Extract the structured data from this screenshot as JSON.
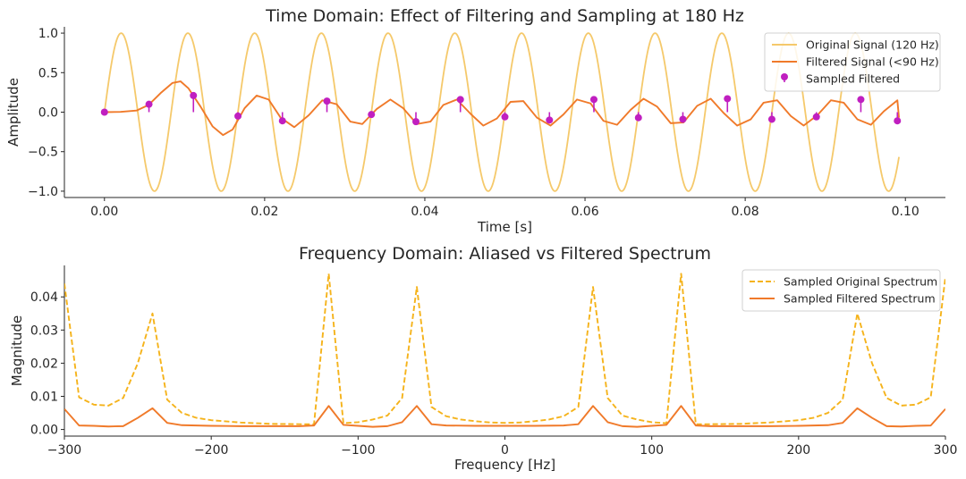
{
  "chart_data": [
    {
      "type": "line",
      "title": "Time Domain: Effect of Filtering and Sampling at 180 Hz",
      "xlabel": "Time [s]",
      "ylabel": "Amplitude",
      "xlim": [
        -0.005,
        0.105
      ],
      "ylim": [
        -1.08,
        1.08
      ],
      "xticks": [
        0.0,
        0.02,
        0.04,
        0.06,
        0.08,
        0.1
      ],
      "xtick_labels": [
        "0.00",
        "0.02",
        "0.04",
        "0.06",
        "0.08",
        "0.10"
      ],
      "yticks": [
        1.0,
        0.5,
        0.0,
        -0.5,
        -1.0
      ],
      "ytick_labels": [
        "1.0",
        "0.5",
        "0.0",
        "−0.5",
        "−1.0"
      ],
      "grid": false,
      "legend_position": "top-right",
      "series": [
        {
          "name": "Original Signal (120 Hz)",
          "kind": "line",
          "color": "#f5c96b",
          "function": "sin(2*pi*120*t)",
          "t_start": 0.0,
          "t_end": 0.0992
        },
        {
          "name": "Filtered Signal (<90 Hz)",
          "kind": "line",
          "color": "#f07a2a",
          "points": [
            [
              0.0,
              0.0
            ],
            [
              0.002,
              0.003
            ],
            [
              0.004,
              0.02
            ],
            [
              0.0055,
              0.09
            ],
            [
              0.007,
              0.24
            ],
            [
              0.0085,
              0.37
            ],
            [
              0.0095,
              0.39
            ],
            [
              0.0105,
              0.3
            ],
            [
              0.012,
              0.07
            ],
            [
              0.0135,
              -0.18
            ],
            [
              0.0148,
              -0.29
            ],
            [
              0.016,
              -0.22
            ],
            [
              0.0175,
              0.05
            ],
            [
              0.019,
              0.21
            ],
            [
              0.0205,
              0.16
            ],
            [
              0.022,
              -0.07
            ],
            [
              0.0237,
              -0.19
            ],
            [
              0.0255,
              -0.04
            ],
            [
              0.0272,
              0.15
            ],
            [
              0.029,
              0.1
            ],
            [
              0.0307,
              -0.12
            ],
            [
              0.0322,
              -0.15
            ],
            [
              0.034,
              0.04
            ],
            [
              0.0357,
              0.16
            ],
            [
              0.0373,
              0.05
            ],
            [
              0.039,
              -0.15
            ],
            [
              0.0407,
              -0.12
            ],
            [
              0.0423,
              0.09
            ],
            [
              0.044,
              0.16
            ],
            [
              0.0457,
              -0.02
            ],
            [
              0.0473,
              -0.17
            ],
            [
              0.049,
              -0.08
            ],
            [
              0.0507,
              0.13
            ],
            [
              0.0523,
              0.14
            ],
            [
              0.054,
              -0.07
            ],
            [
              0.0557,
              -0.17
            ],
            [
              0.0573,
              -0.03
            ],
            [
              0.059,
              0.16
            ],
            [
              0.0607,
              0.11
            ],
            [
              0.0623,
              -0.11
            ],
            [
              0.064,
              -0.16
            ],
            [
              0.0657,
              0.03
            ],
            [
              0.0673,
              0.17
            ],
            [
              0.069,
              0.07
            ],
            [
              0.0707,
              -0.14
            ],
            [
              0.0723,
              -0.13
            ],
            [
              0.074,
              0.08
            ],
            [
              0.0757,
              0.17
            ],
            [
              0.0773,
              -0.01
            ],
            [
              0.079,
              -0.17
            ],
            [
              0.0807,
              -0.09
            ],
            [
              0.0823,
              0.12
            ],
            [
              0.084,
              0.15
            ],
            [
              0.0857,
              -0.05
            ],
            [
              0.0873,
              -0.17
            ],
            [
              0.089,
              -0.04
            ],
            [
              0.0907,
              0.15
            ],
            [
              0.0923,
              0.12
            ],
            [
              0.094,
              -0.09
            ],
            [
              0.0957,
              -0.16
            ],
            [
              0.0973,
              0.01
            ],
            [
              0.099,
              0.15
            ],
            [
              0.0992,
              -0.07
            ]
          ]
        },
        {
          "name": "Sampled Filtered",
          "kind": "stem",
          "color": "#c01fc0",
          "points": [
            [
              0.0,
              0.0
            ],
            [
              0.00556,
              0.1
            ],
            [
              0.01111,
              0.21
            ],
            [
              0.01667,
              -0.05
            ],
            [
              0.02222,
              -0.11
            ],
            [
              0.02778,
              0.14
            ],
            [
              0.03333,
              -0.03
            ],
            [
              0.03889,
              -0.12
            ],
            [
              0.04444,
              0.16
            ],
            [
              0.05,
              -0.06
            ],
            [
              0.05556,
              -0.1
            ],
            [
              0.06111,
              0.16
            ],
            [
              0.06667,
              -0.07
            ],
            [
              0.07222,
              -0.09
            ],
            [
              0.07778,
              0.17
            ],
            [
              0.08333,
              -0.09
            ],
            [
              0.08889,
              -0.06
            ],
            [
              0.09444,
              0.16
            ],
            [
              0.099,
              -0.11
            ]
          ]
        }
      ]
    },
    {
      "type": "line",
      "title": "Frequency Domain: Aliased vs Filtered Spectrum",
      "xlabel": "Frequency [Hz]",
      "ylabel": "Magnitude",
      "xlim": [
        -300,
        300
      ],
      "ylim": [
        -0.002,
        0.0495
      ],
      "xticks": [
        -300,
        -200,
        -100,
        0,
        100,
        200,
        300
      ],
      "xtick_labels": [
        "−300",
        "−200",
        "−100",
        "0",
        "100",
        "200",
        "300"
      ],
      "yticks": [
        0.0,
        0.01,
        0.02,
        0.03,
        0.04
      ],
      "ytick_labels": [
        "0.00",
        "0.01",
        "0.02",
        "0.03",
        "0.04"
      ],
      "grid": false,
      "legend_position": "top-right",
      "series": [
        {
          "name": "Sampled Original Spectrum",
          "kind": "line",
          "dashed": true,
          "color": "#f5b31b",
          "points": [
            [
              -300,
              0.044
            ],
            [
              -290,
              0.0097
            ],
            [
              -280,
              0.0075
            ],
            [
              -270,
              0.0072
            ],
            [
              -260,
              0.0095
            ],
            [
              -250,
              0.02
            ],
            [
              -240,
              0.035
            ],
            [
              -230,
              0.009
            ],
            [
              -220,
              0.005
            ],
            [
              -210,
              0.0035
            ],
            [
              -200,
              0.0028
            ],
            [
              -180,
              0.0021
            ],
            [
              -160,
              0.0017
            ],
            [
              -140,
              0.0016
            ],
            [
              -130,
              0.0016
            ],
            [
              -120,
              0.047
            ],
            [
              -110,
              0.0019
            ],
            [
              -100,
              0.0022
            ],
            [
              -90,
              0.003
            ],
            [
              -80,
              0.0042
            ],
            [
              -70,
              0.0095
            ],
            [
              -60,
              0.043
            ],
            [
              -50,
              0.0068
            ],
            [
              -40,
              0.004
            ],
            [
              -30,
              0.003
            ],
            [
              -20,
              0.0025
            ],
            [
              -10,
              0.0021
            ],
            [
              0,
              0.002
            ],
            [
              10,
              0.0021
            ],
            [
              20,
              0.0025
            ],
            [
              30,
              0.003
            ],
            [
              40,
              0.004
            ],
            [
              50,
              0.0068
            ],
            [
              60,
              0.043
            ],
            [
              70,
              0.0095
            ],
            [
              80,
              0.0042
            ],
            [
              90,
              0.003
            ],
            [
              100,
              0.0022
            ],
            [
              110,
              0.0019
            ],
            [
              120,
              0.047
            ],
            [
              130,
              0.0016
            ],
            [
              140,
              0.0016
            ],
            [
              160,
              0.0017
            ],
            [
              180,
              0.0021
            ],
            [
              200,
              0.0028
            ],
            [
              210,
              0.0035
            ],
            [
              220,
              0.005
            ],
            [
              230,
              0.009
            ],
            [
              240,
              0.035
            ],
            [
              250,
              0.02
            ],
            [
              260,
              0.0095
            ],
            [
              270,
              0.0072
            ],
            [
              280,
              0.0075
            ],
            [
              290,
              0.0097
            ],
            [
              300,
              0.046
            ]
          ]
        },
        {
          "name": "Sampled Filtered Spectrum",
          "kind": "line",
          "dashed": false,
          "color": "#f07a2a",
          "points": [
            [
              -300,
              0.0062
            ],
            [
              -290,
              0.0012
            ],
            [
              -280,
              0.0011
            ],
            [
              -270,
              0.0009
            ],
            [
              -260,
              0.001
            ],
            [
              -250,
              0.0035
            ],
            [
              -240,
              0.0064
            ],
            [
              -230,
              0.002
            ],
            [
              -220,
              0.0013
            ],
            [
              -200,
              0.0011
            ],
            [
              -180,
              0.001
            ],
            [
              -160,
              0.001
            ],
            [
              -140,
              0.001
            ],
            [
              -130,
              0.0012
            ],
            [
              -120,
              0.0071
            ],
            [
              -110,
              0.0014
            ],
            [
              -100,
              0.0011
            ],
            [
              -90,
              0.0008
            ],
            [
              -80,
              0.001
            ],
            [
              -70,
              0.0022
            ],
            [
              -60,
              0.0071
            ],
            [
              -50,
              0.0016
            ],
            [
              -40,
              0.0012
            ],
            [
              -20,
              0.0011
            ],
            [
              0,
              0.0011
            ],
            [
              20,
              0.0011
            ],
            [
              40,
              0.0012
            ],
            [
              50,
              0.0016
            ],
            [
              60,
              0.0071
            ],
            [
              70,
              0.0022
            ],
            [
              80,
              0.001
            ],
            [
              90,
              0.0008
            ],
            [
              100,
              0.0011
            ],
            [
              110,
              0.0014
            ],
            [
              120,
              0.0071
            ],
            [
              130,
              0.0012
            ],
            [
              140,
              0.001
            ],
            [
              160,
              0.001
            ],
            [
              180,
              0.001
            ],
            [
              200,
              0.0011
            ],
            [
              220,
              0.0013
            ],
            [
              230,
              0.002
            ],
            [
              240,
              0.0064
            ],
            [
              250,
              0.0035
            ],
            [
              260,
              0.001
            ],
            [
              270,
              0.0009
            ],
            [
              280,
              0.0011
            ],
            [
              290,
              0.0012
            ],
            [
              300,
              0.0062
            ]
          ]
        }
      ]
    }
  ]
}
